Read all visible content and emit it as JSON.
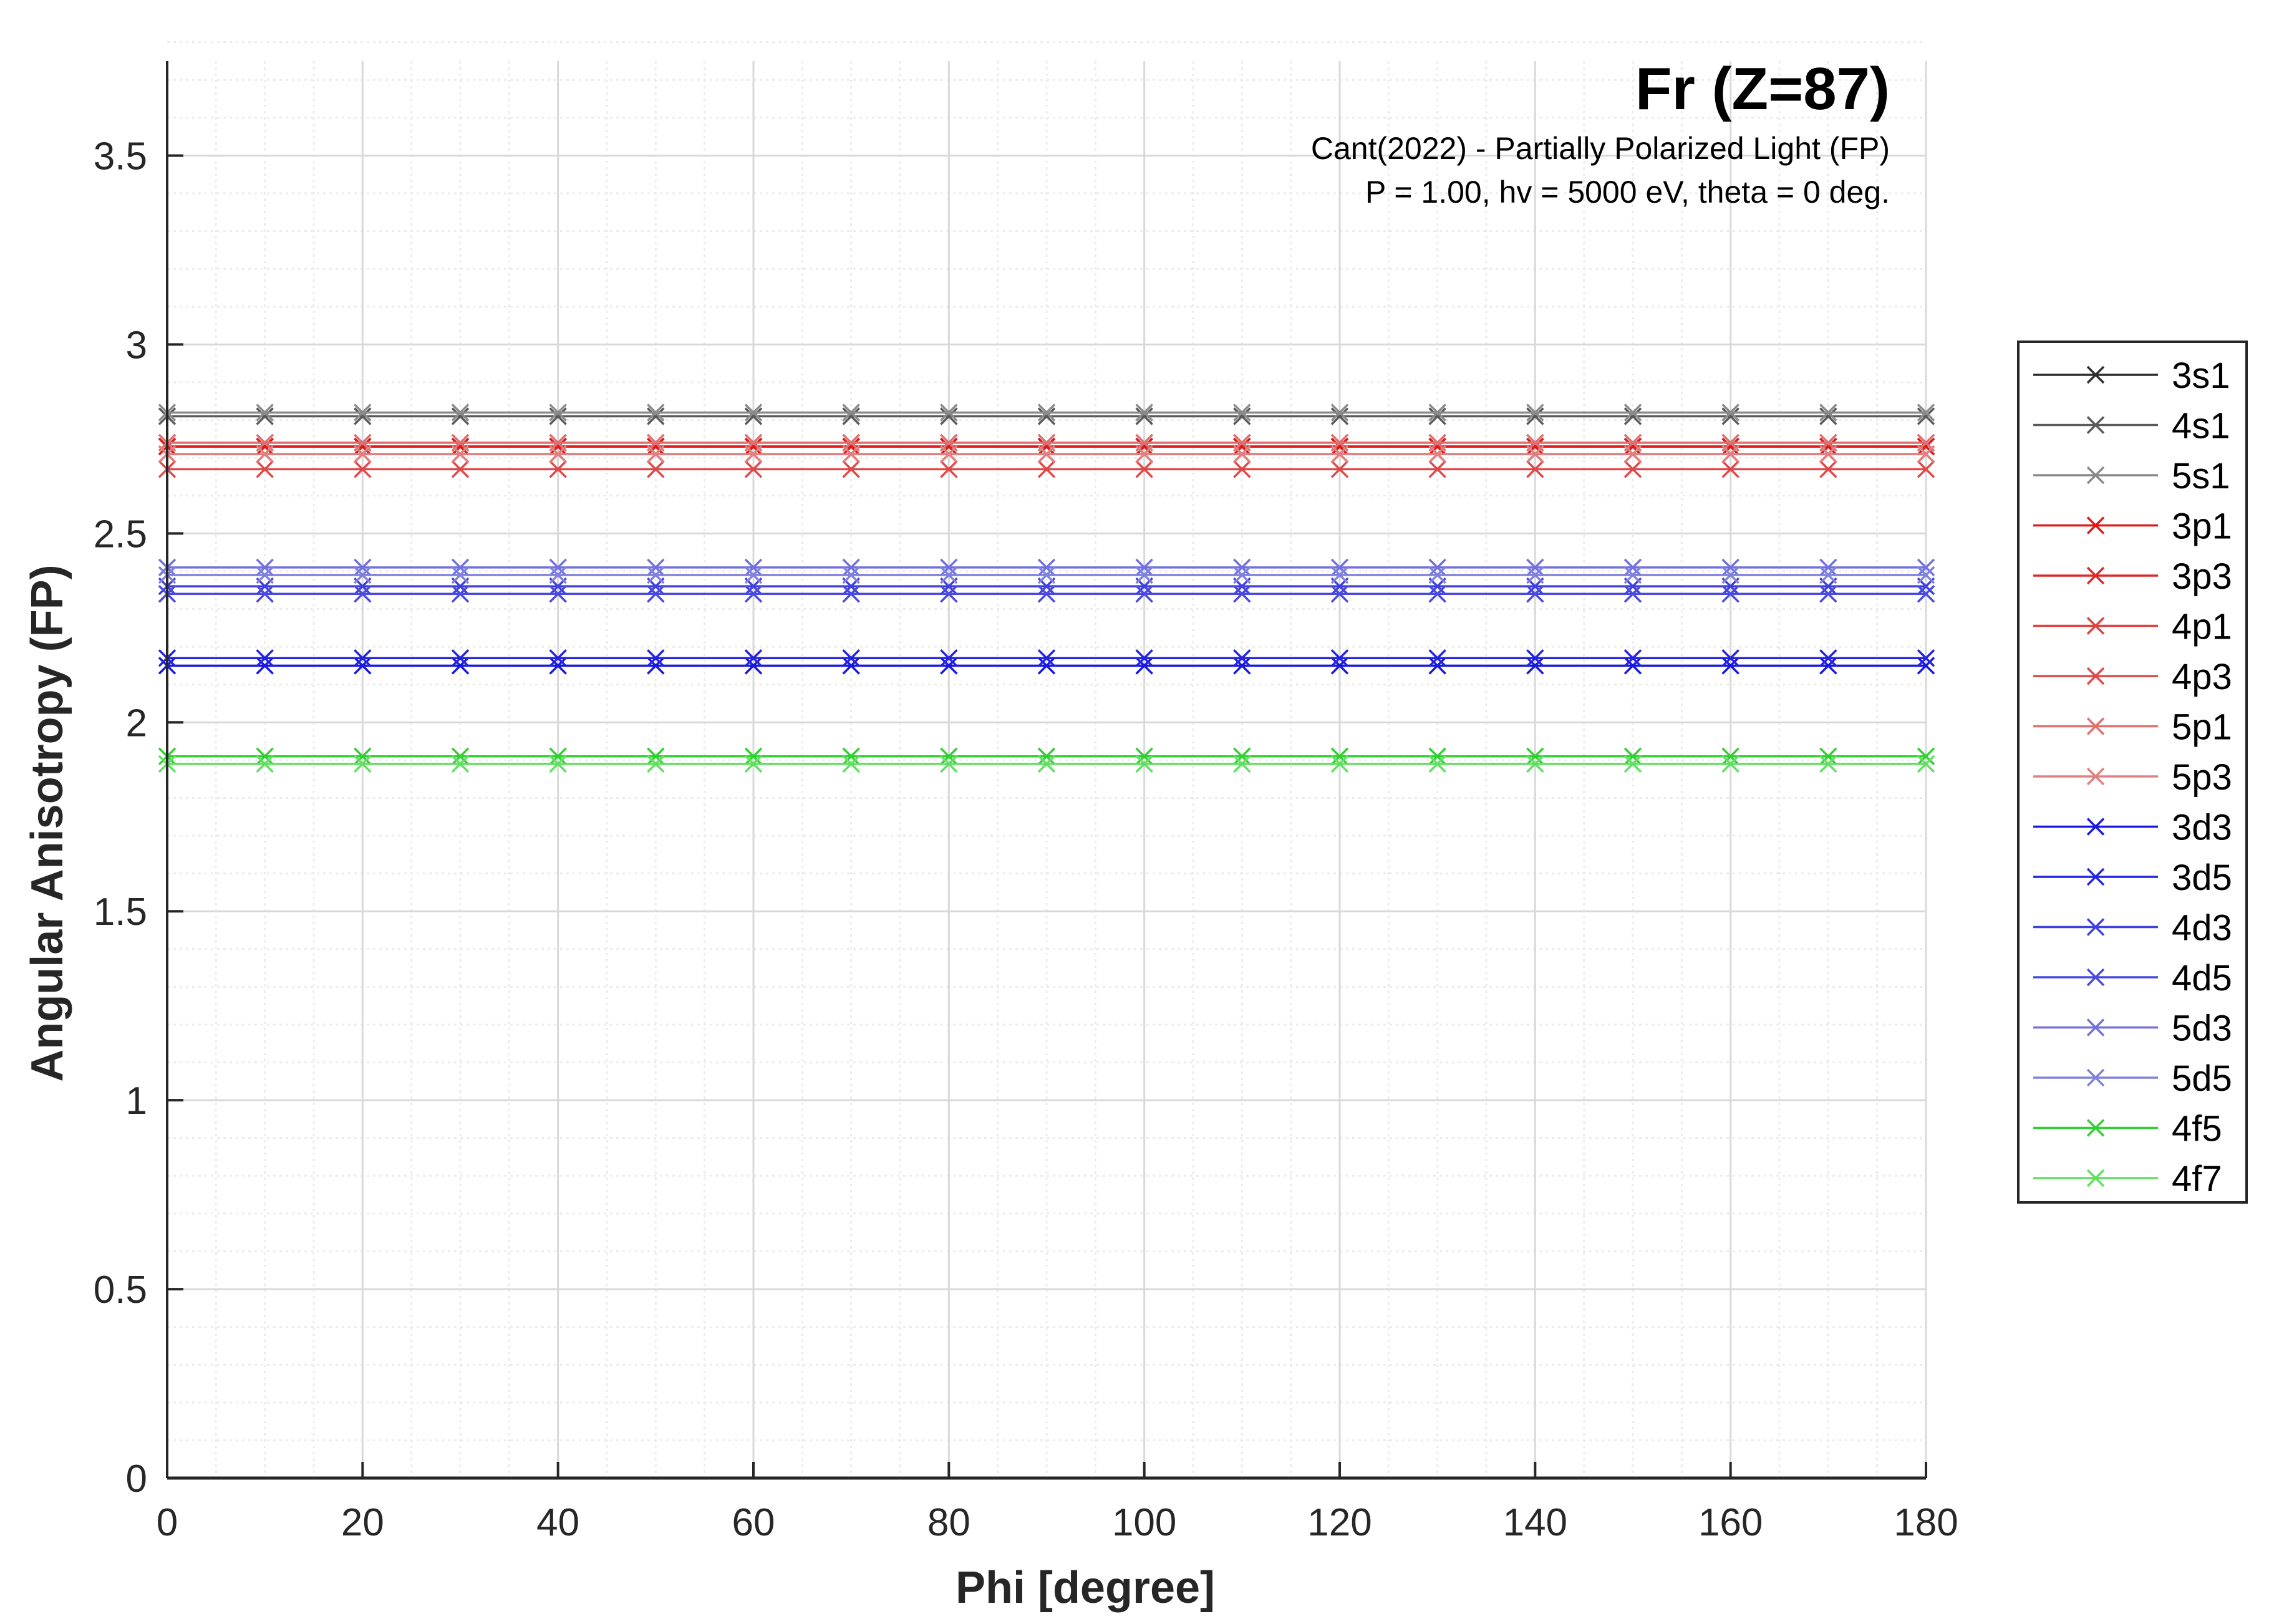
{
  "chart_data": {
    "type": "line",
    "title": "Fr (Z=87)",
    "subtitle_lines": [
      "Cant(2022) - Partially Polarized Light (FP)",
      "P = 1.00, hv = 5000 eV, theta = 0 deg."
    ],
    "xlabel": "Phi [degree]",
    "ylabel": "Angular Anisotropy (FP)",
    "xlim": [
      0,
      180
    ],
    "ylim": [
      0,
      3.75
    ],
    "xticks": [
      0,
      20,
      40,
      60,
      80,
      100,
      120,
      140,
      160,
      180
    ],
    "xtick_labels": [
      "0",
      "20",
      "40",
      "60",
      "80",
      "100",
      "120",
      "140",
      "160",
      "180"
    ],
    "yticks": [
      0,
      0.5,
      1,
      1.5,
      2,
      2.5,
      3,
      3.5
    ],
    "ytick_labels": [
      "0",
      "0.5",
      "1",
      "1.5",
      "2",
      "2.5",
      "3",
      "3.5"
    ],
    "grid": true,
    "minor_grid": true,
    "legend_position": "right-outside",
    "marker": "x",
    "x": [
      0,
      10,
      20,
      30,
      40,
      50,
      60,
      70,
      80,
      90,
      100,
      110,
      120,
      130,
      140,
      150,
      160,
      170,
      180
    ],
    "series": [
      {
        "name": "3s1",
        "value": 2.73,
        "color": "#2e2e2e"
      },
      {
        "name": "4s1",
        "value": 2.81,
        "color": "#5a5a5a"
      },
      {
        "name": "5s1",
        "value": 2.82,
        "color": "#8a8a8a"
      },
      {
        "name": "3p1",
        "value": 2.73,
        "color": "#e01818"
      },
      {
        "name": "3p3",
        "value": 2.71,
        "color": "#e02828"
      },
      {
        "name": "4p1",
        "value": 2.74,
        "color": "#e04040"
      },
      {
        "name": "4p3",
        "value": 2.67,
        "color": "#e04848"
      },
      {
        "name": "5p1",
        "value": 2.74,
        "color": "#e07070"
      },
      {
        "name": "5p3",
        "value": 2.71,
        "color": "#e08080"
      },
      {
        "name": "3d3",
        "value": 2.15,
        "color": "#1818e0"
      },
      {
        "name": "3d5",
        "value": 2.17,
        "color": "#2424e0"
      },
      {
        "name": "4d3",
        "value": 2.36,
        "color": "#4040e0"
      },
      {
        "name": "4d5",
        "value": 2.34,
        "color": "#4a4ae0"
      },
      {
        "name": "5d3",
        "value": 2.41,
        "color": "#7070e0"
      },
      {
        "name": "5d5",
        "value": 2.39,
        "color": "#8080e0"
      },
      {
        "name": "4f5",
        "value": 1.91,
        "color": "#30d030"
      },
      {
        "name": "4f7",
        "value": 1.89,
        "color": "#60e060"
      }
    ],
    "colors": {
      "axis": "#262626",
      "major_grid": "#d9d9d9",
      "minor_grid": "#ececec"
    }
  }
}
